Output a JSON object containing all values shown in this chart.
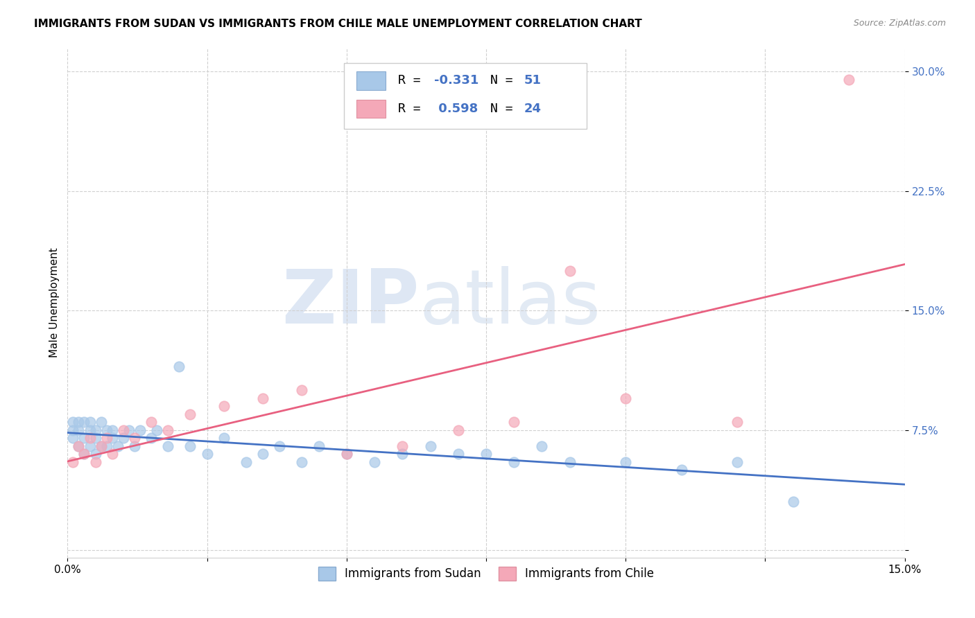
{
  "title": "IMMIGRANTS FROM SUDAN VS IMMIGRANTS FROM CHILE MALE UNEMPLOYMENT CORRELATION CHART",
  "source": "Source: ZipAtlas.com",
  "ylabel": "Male Unemployment",
  "xlim": [
    0.0,
    0.15
  ],
  "ylim": [
    -0.005,
    0.315
  ],
  "yticks": [
    0.0,
    0.075,
    0.15,
    0.225,
    0.3
  ],
  "ytick_labels": [
    "",
    "7.5%",
    "15.0%",
    "22.5%",
    "30.0%"
  ],
  "sudan_color": "#a8c8e8",
  "chile_color": "#f4a8b8",
  "trend_sudan_color": "#4472c4",
  "trend_chile_color": "#e86080",
  "sudan_x": [
    0.001,
    0.001,
    0.001,
    0.002,
    0.002,
    0.002,
    0.003,
    0.003,
    0.003,
    0.004,
    0.004,
    0.004,
    0.005,
    0.005,
    0.005,
    0.006,
    0.006,
    0.007,
    0.007,
    0.008,
    0.008,
    0.009,
    0.01,
    0.011,
    0.012,
    0.013,
    0.015,
    0.016,
    0.018,
    0.02,
    0.022,
    0.025,
    0.028,
    0.032,
    0.035,
    0.038,
    0.042,
    0.045,
    0.05,
    0.055,
    0.06,
    0.065,
    0.07,
    0.075,
    0.08,
    0.085,
    0.09,
    0.1,
    0.11,
    0.12,
    0.13
  ],
  "sudan_y": [
    0.07,
    0.075,
    0.08,
    0.065,
    0.075,
    0.08,
    0.06,
    0.07,
    0.08,
    0.065,
    0.075,
    0.08,
    0.06,
    0.07,
    0.075,
    0.065,
    0.08,
    0.065,
    0.075,
    0.07,
    0.075,
    0.065,
    0.07,
    0.075,
    0.065,
    0.075,
    0.07,
    0.075,
    0.065,
    0.115,
    0.065,
    0.06,
    0.07,
    0.055,
    0.06,
    0.065,
    0.055,
    0.065,
    0.06,
    0.055,
    0.06,
    0.065,
    0.06,
    0.06,
    0.055,
    0.065,
    0.055,
    0.055,
    0.05,
    0.055,
    0.03
  ],
  "chile_x": [
    0.001,
    0.002,
    0.003,
    0.004,
    0.005,
    0.006,
    0.007,
    0.008,
    0.01,
    0.012,
    0.015,
    0.018,
    0.022,
    0.028,
    0.035,
    0.042,
    0.05,
    0.06,
    0.07,
    0.08,
    0.09,
    0.1,
    0.12,
    0.14
  ],
  "chile_y": [
    0.055,
    0.065,
    0.06,
    0.07,
    0.055,
    0.065,
    0.07,
    0.06,
    0.075,
    0.07,
    0.08,
    0.075,
    0.085,
    0.09,
    0.095,
    0.1,
    0.06,
    0.065,
    0.075,
    0.08,
    0.175,
    0.095,
    0.08,
    0.295
  ],
  "title_fontsize": 11,
  "axis_label_fontsize": 11,
  "tick_fontsize": 11
}
